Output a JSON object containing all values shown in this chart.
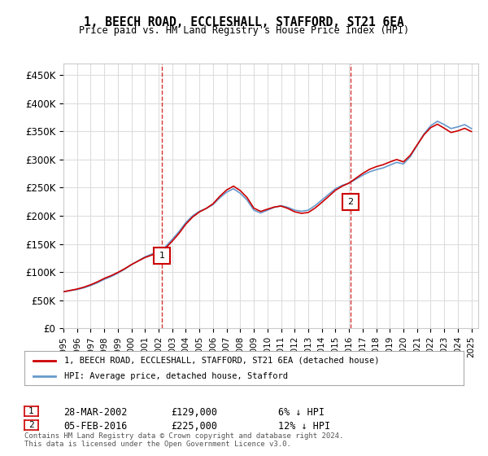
{
  "title": "1, BEECH ROAD, ECCLESHALL, STAFFORD, ST21 6EA",
  "subtitle": "Price paid vs. HM Land Registry's House Price Index (HPI)",
  "ylabel_ticks": [
    "£0",
    "£50K",
    "£100K",
    "£150K",
    "£200K",
    "£250K",
    "£300K",
    "£350K",
    "£400K",
    "£450K"
  ],
  "ytick_values": [
    0,
    50000,
    100000,
    150000,
    200000,
    250000,
    300000,
    350000,
    400000,
    450000
  ],
  "ylim": [
    0,
    470000
  ],
  "xlim_start": 1995.0,
  "xlim_end": 2025.5,
  "red_line_color": "#cc0000",
  "blue_line_color": "#6699cc",
  "vline_color": "#cc0000",
  "sale1_x": 2002.24,
  "sale1_y": 129000,
  "sale1_label": "1",
  "sale2_x": 2016.09,
  "sale2_y": 225000,
  "sale2_label": "2",
  "footer": "Contains HM Land Registry data © Crown copyright and database right 2024.\nThis data is licensed under the Open Government Licence v3.0.",
  "legend_red": "1, BEECH ROAD, ECCLESHALL, STAFFORD, ST21 6EA (detached house)",
  "legend_blue": "HPI: Average price, detached house, Stafford",
  "table_rows": [
    {
      "num": "1",
      "date": "28-MAR-2002",
      "price": "£129,000",
      "pct": "6% ↓ HPI"
    },
    {
      "num": "2",
      "date": "05-FEB-2016",
      "price": "£225,000",
      "pct": "12% ↓ HPI"
    }
  ],
  "background_color": "#ffffff",
  "plot_bg_color": "#ffffff",
  "grid_color": "#dddddd"
}
